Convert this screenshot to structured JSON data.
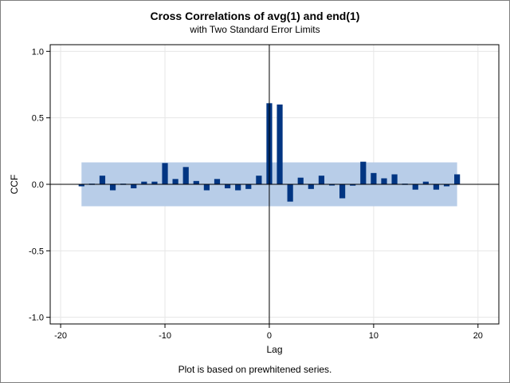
{
  "chart_data": {
    "type": "bar",
    "title": "Cross Correlations of avg(1) and end(1)",
    "subtitle": "with Two Standard Error Limits",
    "footnote": "Plot is based on prewhitened series.",
    "xlabel": "Lag",
    "ylabel": "CCF",
    "xlim": [
      -21,
      22
    ],
    "ylim": [
      -1.05,
      1.05
    ],
    "xticks": [
      -20,
      -10,
      0,
      10,
      20
    ],
    "xtick_labels": [
      "-20",
      "-10",
      "0",
      "10",
      "20"
    ],
    "yticks": [
      -1.0,
      -0.5,
      0.0,
      0.5,
      1.0
    ],
    "ytick_labels": [
      "-1.0",
      "-0.5",
      "0.0",
      "0.5",
      "1.0"
    ],
    "grid": true,
    "error_band": {
      "lag_range": [
        -18,
        18
      ],
      "lower": -0.165,
      "upper": 0.165
    },
    "lags": [
      -18,
      -17,
      -16,
      -15,
      -14,
      -13,
      -12,
      -11,
      -10,
      -9,
      -8,
      -7,
      -6,
      -5,
      -4,
      -3,
      -2,
      -1,
      0,
      1,
      2,
      3,
      4,
      5,
      6,
      7,
      8,
      9,
      10,
      11,
      12,
      13,
      14,
      15,
      16,
      17,
      18
    ],
    "values": [
      -0.015,
      0.005,
      0.065,
      -0.045,
      0.005,
      -0.03,
      0.02,
      0.02,
      0.16,
      0.04,
      0.13,
      0.025,
      -0.045,
      0.04,
      -0.03,
      -0.045,
      -0.035,
      0.065,
      0.61,
      0.6,
      -0.13,
      0.05,
      -0.035,
      0.065,
      -0.005,
      -0.105,
      -0.01,
      0.17,
      0.085,
      0.045,
      0.075,
      0.005,
      -0.04,
      0.02,
      -0.04,
      -0.015,
      0.075
    ],
    "colors": {
      "bar": "#013582",
      "band": "#b8cde8",
      "grid": "#e6e6e6",
      "axis": "#000000"
    }
  }
}
